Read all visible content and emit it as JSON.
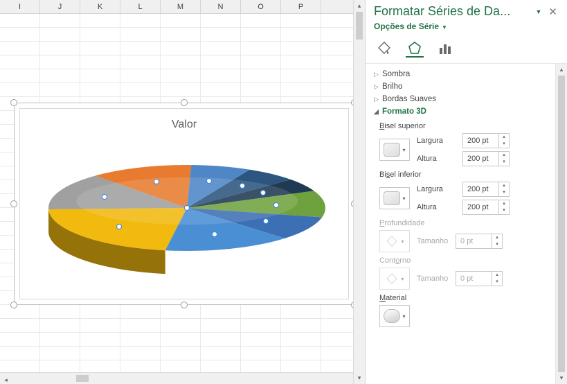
{
  "columns": [
    "I",
    "J",
    "K",
    "L",
    "M",
    "N",
    "O",
    "P",
    ""
  ],
  "chart": {
    "title": "Valor",
    "type": "pie3d",
    "slices": [
      {
        "value": 22,
        "color": "#f2b90f"
      },
      {
        "value": 14,
        "color": "#a0a0a0"
      },
      {
        "value": 12,
        "color": "#e87b2f"
      },
      {
        "value": 7,
        "color": "#4f86c6"
      },
      {
        "value": 6,
        "color": "#2c567f"
      },
      {
        "value": 5,
        "color": "#1f3a52"
      },
      {
        "value": 10,
        "color": "#6fa23e"
      },
      {
        "value": 9,
        "color": "#3d6fb4"
      },
      {
        "value": 15,
        "color": "#4a8fd4"
      }
    ],
    "background": "#ffffff",
    "frame_border": "#bdbdbd"
  },
  "panel": {
    "title": "Formatar Séries de Da...",
    "subtitle": "Opções de Série",
    "sections": {
      "sombra": "Sombra",
      "brilho": "Brilho",
      "bordas": "Bordas Suaves",
      "formato3d": "Formato 3D"
    },
    "bevel_top": {
      "label": "Bisel superior",
      "largura_label": "Largura",
      "largura_value": "200 pt",
      "altura_label": "Altura",
      "altura_value": "200 pt"
    },
    "bevel_bottom": {
      "label": "Bisel inferior",
      "largura_label": "Largura",
      "largura_value": "200 pt",
      "altura_label": "Altura",
      "altura_value": "200 pt"
    },
    "depth": {
      "label": "Profundidade",
      "tamanho_label": "Tamanho",
      "tamanho_value": "0 pt"
    },
    "contour": {
      "label": "Contorno",
      "tamanho_label": "Tamanho",
      "tamanho_value": "0 pt"
    },
    "material": {
      "label": "Material"
    }
  }
}
